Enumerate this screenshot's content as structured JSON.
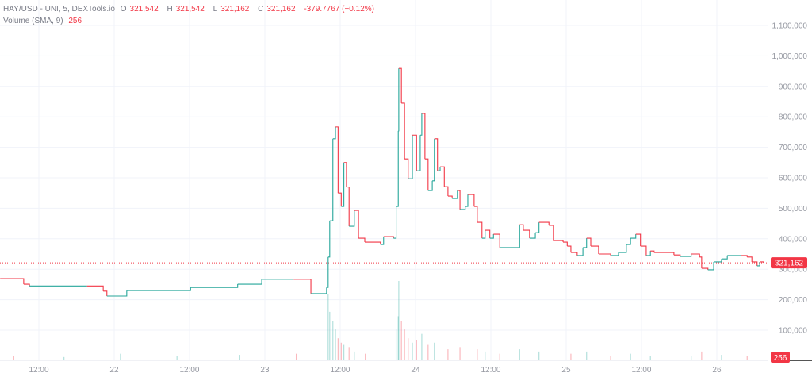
{
  "legend": {
    "symbol": "HAY/USD - UNI, 5, DEXTools.io",
    "open_label": "O",
    "open": "321,542",
    "high_label": "H",
    "high": "321,542",
    "low_label": "L",
    "low": "321,162",
    "close_label": "C",
    "close": "321,162",
    "change": "-379.7767 (−0.12%)",
    "volume_label": "Volume (SMA, 9)",
    "volume_value": "256"
  },
  "colors": {
    "up": "#26a69a",
    "down": "#f23645",
    "grid": "#f0f3fa",
    "axis_text": "#9598a1"
  },
  "chart_data": {
    "type": "line",
    "style": "candlestick (5-minute), rendered as price path",
    "price_axis": {
      "ylim": [
        0,
        1180000
      ],
      "ticks": [
        100000,
        200000,
        300000,
        400000,
        500000,
        600000,
        700000,
        800000,
        900000,
        1000000,
        1100000
      ],
      "tick_labels": [
        "100,000",
        "200,000",
        "300,000",
        "400,000",
        "500,000",
        "600,000",
        "700,000",
        "800,000",
        "900,000",
        "1,000,000",
        "1,100,000"
      ]
    },
    "time_axis": {
      "range": [
        "21 05:50",
        "26 08:30"
      ],
      "ticks": [
        "21 12:00",
        "22 00:00",
        "22 12:00",
        "23 00:00",
        "23 12:00",
        "24 00:00",
        "24 12:00",
        "25 00:00",
        "25 12:00",
        "26 00:00"
      ],
      "tick_labels": [
        "12:00",
        "22",
        "12:00",
        "23",
        "12:00",
        "24",
        "12:00",
        "25",
        "12:00",
        "26"
      ]
    },
    "grid": true,
    "last_price": 321162,
    "last_price_label": "321,162",
    "last_volume": 256,
    "last_volume_label": "256",
    "close": [
      [
        "21 05:50",
        269000
      ],
      [
        "21 09:35",
        251000
      ],
      [
        "21 10:30",
        245000
      ],
      [
        "21 19:40",
        245000
      ],
      [
        "21 22:15",
        228000
      ],
      [
        "21 22:50",
        212000
      ],
      [
        "22 02:00",
        230000
      ],
      [
        "22 12:10",
        240000
      ],
      [
        "22 19:40",
        251000
      ],
      [
        "22 23:30",
        267000
      ],
      [
        "23 04:35",
        267000
      ],
      [
        "23 07:20",
        220000
      ],
      [
        "23 09:50",
        240000
      ],
      [
        "23 10:05",
        340000
      ],
      [
        "23 10:20",
        459000
      ],
      [
        "23 10:50",
        728000
      ],
      [
        "23 11:15",
        767000
      ],
      [
        "23 11:40",
        550000
      ],
      [
        "23 12:10",
        506000
      ],
      [
        "23 12:35",
        650000
      ],
      [
        "23 13:00",
        570000
      ],
      [
        "23 13:25",
        441000
      ],
      [
        "23 14:15",
        493000
      ],
      [
        "23 14:55",
        402000
      ],
      [
        "23 15:55",
        389000
      ],
      [
        "23 18:25",
        381000
      ],
      [
        "23 18:55",
        407000
      ],
      [
        "23 20:30",
        402000
      ],
      [
        "23 20:55",
        506000
      ],
      [
        "23 21:15",
        754000
      ],
      [
        "23 21:20",
        959000
      ],
      [
        "23 21:45",
        845000
      ],
      [
        "23 22:15",
        662000
      ],
      [
        "23 22:50",
        597000
      ],
      [
        "23 23:30",
        740000
      ],
      [
        "24 00:10",
        623000
      ],
      [
        "24 00:45",
        740000
      ],
      [
        "24 01:00",
        811000
      ],
      [
        "24 01:30",
        662000
      ],
      [
        "24 02:00",
        558000
      ],
      [
        "24 02:40",
        590000
      ],
      [
        "24 03:00",
        728000
      ],
      [
        "24 03:30",
        623000
      ],
      [
        "24 03:55",
        636000
      ],
      [
        "24 04:35",
        571000
      ],
      [
        "24 05:10",
        540000
      ],
      [
        "24 05:50",
        532000
      ],
      [
        "24 06:40",
        558000
      ],
      [
        "24 07:05",
        496000
      ],
      [
        "24 07:55",
        506000
      ],
      [
        "24 08:20",
        545000
      ],
      [
        "24 09:20",
        506000
      ],
      [
        "24 09:50",
        454000
      ],
      [
        "24 10:35",
        402000
      ],
      [
        "24 11:05",
        428000
      ],
      [
        "24 11:50",
        402000
      ],
      [
        "24 12:25",
        415000
      ],
      [
        "24 13:25",
        371000
      ],
      [
        "24 15:15",
        371000
      ],
      [
        "24 16:35",
        446000
      ],
      [
        "24 17:10",
        428000
      ],
      [
        "24 18:10",
        402000
      ],
      [
        "24 19:05",
        420000
      ],
      [
        "24 19:40",
        454000
      ],
      [
        "24 21:15",
        444000
      ],
      [
        "24 22:00",
        394000
      ],
      [
        "24 23:30",
        389000
      ],
      [
        "25 00:10",
        376000
      ],
      [
        "25 00:45",
        355000
      ],
      [
        "25 01:45",
        345000
      ],
      [
        "25 02:40",
        371000
      ],
      [
        "25 03:15",
        402000
      ],
      [
        "25 03:55",
        376000
      ],
      [
        "25 05:10",
        350000
      ],
      [
        "25 07:05",
        345000
      ],
      [
        "25 08:20",
        355000
      ],
      [
        "25 09:35",
        381000
      ],
      [
        "25 10:15",
        402000
      ],
      [
        "25 11:05",
        415000
      ],
      [
        "25 11:50",
        376000
      ],
      [
        "25 12:45",
        345000
      ],
      [
        "25 13:25",
        360000
      ],
      [
        "25 14:00",
        355000
      ],
      [
        "25 17:10",
        347000
      ],
      [
        "25 18:10",
        342000
      ],
      [
        "25 19:55",
        350000
      ],
      [
        "25 21:15",
        340000
      ],
      [
        "25 21:35",
        303000
      ],
      [
        "25 22:35",
        298000
      ],
      [
        "25 23:30",
        324000
      ],
      [
        "26 00:45",
        334000
      ],
      [
        "26 01:40",
        345000
      ],
      [
        "26 03:55",
        345000
      ],
      [
        "26 04:50",
        340000
      ],
      [
        "26 05:35",
        324000
      ],
      [
        "26 06:25",
        311000
      ],
      [
        "26 06:50",
        324000
      ],
      [
        "26 07:25",
        321162
      ]
    ],
    "volume": [
      [
        "21 08:00",
        2000
      ],
      [
        "21 16:00",
        1500
      ],
      [
        "22 01:00",
        3000
      ],
      [
        "22 10:00",
        2000
      ],
      [
        "22 20:00",
        2500
      ],
      [
        "23 05:00",
        3000
      ],
      [
        "23 10:05",
        30000
      ],
      [
        "23 10:20",
        22000
      ],
      [
        "23 10:50",
        18000
      ],
      [
        "23 11:15",
        14000
      ],
      [
        "23 11:40",
        10000
      ],
      [
        "23 12:10",
        8000
      ],
      [
        "23 12:35",
        7000
      ],
      [
        "23 13:25",
        6000
      ],
      [
        "23 14:15",
        4000
      ],
      [
        "23 16:00",
        3000
      ],
      [
        "23 20:55",
        14000
      ],
      [
        "23 21:15",
        20000
      ],
      [
        "23 21:20",
        36000
      ],
      [
        "23 21:45",
        18000
      ],
      [
        "23 22:15",
        14000
      ],
      [
        "23 22:50",
        10000
      ],
      [
        "23 23:30",
        8000
      ],
      [
        "24 00:10",
        9000
      ],
      [
        "24 01:00",
        12000
      ],
      [
        "24 02:00",
        7000
      ],
      [
        "24 03:00",
        8000
      ],
      [
        "24 05:10",
        5000
      ],
      [
        "24 07:05",
        6000
      ],
      [
        "24 09:50",
        5000
      ],
      [
        "24 11:05",
        4000
      ],
      [
        "24 13:25",
        3000
      ],
      [
        "24 16:35",
        5000
      ],
      [
        "24 19:40",
        4000
      ],
      [
        "25 00:45",
        3000
      ],
      [
        "25 03:15",
        4000
      ],
      [
        "25 07:05",
        2000
      ],
      [
        "25 10:15",
        3000
      ],
      [
        "25 13:25",
        2000
      ],
      [
        "25 19:55",
        2000
      ],
      [
        "25 21:35",
        4000
      ],
      [
        "26 00:45",
        2500
      ],
      [
        "26 04:50",
        2000
      ],
      [
        "26 07:25",
        256
      ]
    ]
  }
}
